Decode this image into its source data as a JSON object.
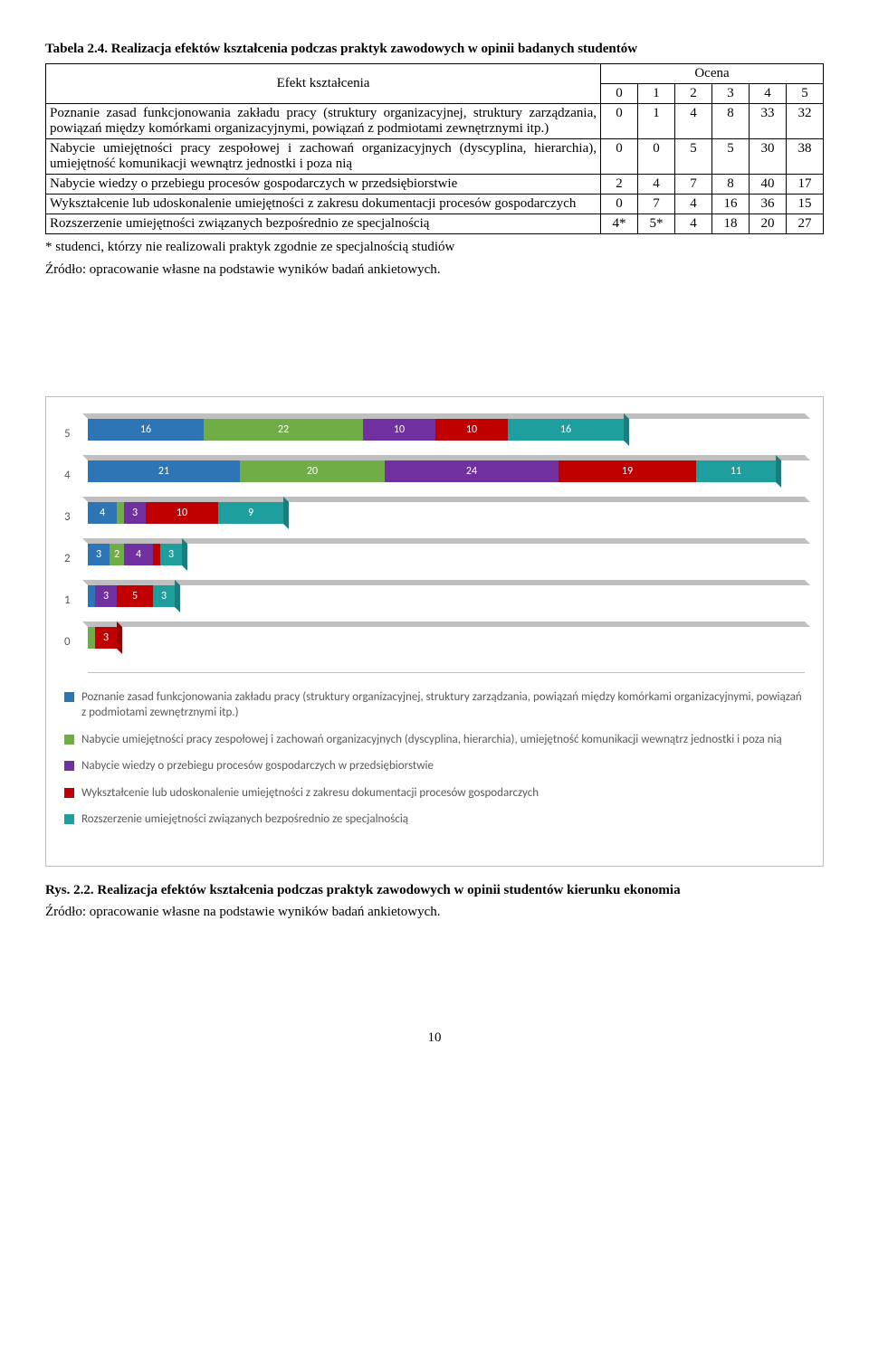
{
  "table_caption": "Tabela 2.4. Realizacja efektów kształcenia podczas praktyk zawodowych w opinii badanych studentów",
  "table": {
    "row_header": "Efekt kształcenia",
    "group_header": "Ocena",
    "cols": [
      "0",
      "1",
      "2",
      "3",
      "4",
      "5"
    ],
    "rows": [
      {
        "label": "Poznanie zasad funkcjonowania zakładu pracy (struktury organizacyjnej, struktury zarządzania, powiązań między komórkami organizacyjnymi, powiązań z podmiotami zewnętrznymi itp.)",
        "v": [
          "0",
          "1",
          "4",
          "8",
          "33",
          "32"
        ]
      },
      {
        "label": "Nabycie umiejętności pracy zespołowej i zachowań organizacyjnych (dyscyplina, hierarchia), umiejętność komunikacji wewnątrz jednostki i poza nią",
        "v": [
          "0",
          "0",
          "5",
          "5",
          "30",
          "38"
        ]
      },
      {
        "label": "Nabycie wiedzy o przebiegu procesów gospodarczych w przedsiębiorstwie",
        "v": [
          "2",
          "4",
          "7",
          "8",
          "40",
          "17"
        ]
      },
      {
        "label": "Wykształcenie lub udoskonalenie umiejętności z zakresu dokumentacji procesów gospodarczych",
        "v": [
          "0",
          "7",
          "4",
          "16",
          "36",
          "15"
        ]
      },
      {
        "label": "Rozszerzenie umiejętności związanych bezpośrednio ze specjalnością",
        "v": [
          "4*",
          "5*",
          "4",
          "18",
          "20",
          "27"
        ]
      }
    ]
  },
  "footnote1": "* studenci, którzy nie realizowali praktyk zgodnie ze specjalnością studiów",
  "footnote2": "Źródło: opracowanie własne na podstawie wyników badań ankietowych.",
  "chart": {
    "type": "stacked-bar-horizontal",
    "y_categories": [
      "5",
      "4",
      "3",
      "2",
      "1",
      "0"
    ],
    "series_colors": [
      "#2e75b6",
      "#70ad47",
      "#7030a0",
      "#c00000",
      "#1f9e9e"
    ],
    "background": "#ffffff",
    "max_total": 95,
    "rows": [
      {
        "cat": "5",
        "vals": [
          16,
          22,
          10,
          10,
          16
        ],
        "labels": [
          "16",
          "22",
          "10",
          "10",
          "16"
        ]
      },
      {
        "cat": "4",
        "vals": [
          21,
          20,
          24,
          19,
          11
        ],
        "labels": [
          "21",
          "20",
          "24",
          "19",
          "11"
        ]
      },
      {
        "cat": "3",
        "vals": [
          4,
          1,
          3,
          10,
          9
        ],
        "labels": [
          "4",
          "1",
          "3",
          "10",
          "9"
        ]
      },
      {
        "cat": "2",
        "vals": [
          3,
          2,
          4,
          1,
          3
        ],
        "labels": [
          "3",
          "2",
          "4",
          "1",
          "3"
        ]
      },
      {
        "cat": "1",
        "vals": [
          1,
          0,
          3,
          5,
          3
        ],
        "labels": [
          "1",
          "0",
          "3",
          "5",
          "3"
        ]
      },
      {
        "cat": "0",
        "vals": [
          0,
          1,
          0,
          3,
          0
        ],
        "labels": [
          "0",
          "1",
          "0",
          "3",
          ""
        ]
      }
    ],
    "legend": [
      "Poznanie zasad funkcjonowania zakładu pracy (struktury organizacyjnej, struktury zarządzania, powiązań między komórkami organizacyjnymi, powiązań z podmiotami zewnętrznymi itp.)",
      "Nabycie umiejętności pracy zespołowej i zachowań organizacyjnych (dyscyplina, hierarchia), umiejętność komunikacji wewnątrz jednostki i poza nią",
      "Nabycie wiedzy o przebiegu procesów gospodarczych w przedsiębiorstwie",
      "Wykształcenie lub udoskonalenie umiejętności z zakresu dokumentacji procesów gospodarczych",
      "Rozszerzenie umiejętności związanych bezpośrednio ze specjalnością"
    ]
  },
  "fig_caption_bold": "Rys. 2.2. Realizacja efektów kształcenia podczas praktyk zawodowych w opinii studentów kierunku ekonomia",
  "fig_source": "Źródło: opracowanie własne na podstawie wyników badań ankietowych.",
  "page_number": "10"
}
